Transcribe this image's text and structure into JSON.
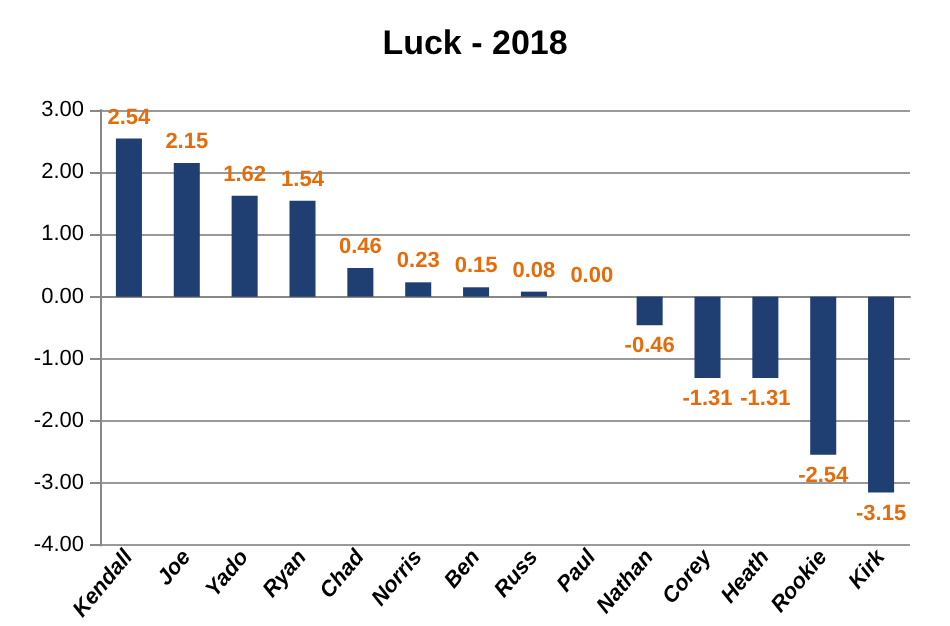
{
  "chart_data": {
    "type": "bar",
    "title": "Luck - 2018",
    "categories": [
      "Kendall",
      "Joe",
      "Yado",
      "Ryan",
      "Chad",
      "Norris",
      "Ben",
      "Russ",
      "Paul",
      "Nathan",
      "Corey",
      "Heath",
      "Rookie",
      "Kirk"
    ],
    "values": [
      2.54,
      2.15,
      1.62,
      1.54,
      0.46,
      0.23,
      0.15,
      0.08,
      0.0,
      -0.46,
      -1.31,
      -1.31,
      -2.54,
      -3.15
    ],
    "value_labels": [
      "2.54",
      "2.15",
      "1.62",
      "1.54",
      "0.46",
      "0.23",
      "0.15",
      "0.08",
      "0.00",
      "-0.46",
      "-1.31",
      "-1.31",
      "-2.54",
      "-3.15"
    ],
    "color": "#1f3f73",
    "ylim": [
      -4,
      3
    ],
    "yticks": [
      {
        "value": -4,
        "label": "-4.00"
      },
      {
        "value": -3,
        "label": "-3.00"
      },
      {
        "value": -2,
        "label": "-2.00"
      },
      {
        "value": -1,
        "label": "-1.00"
      },
      {
        "value": 0,
        "label": "0.00"
      },
      {
        "value": 1,
        "label": "1.00"
      },
      {
        "value": 2,
        "label": "2.00"
      },
      {
        "value": 3,
        "label": "3.00"
      }
    ],
    "grid": "y"
  }
}
